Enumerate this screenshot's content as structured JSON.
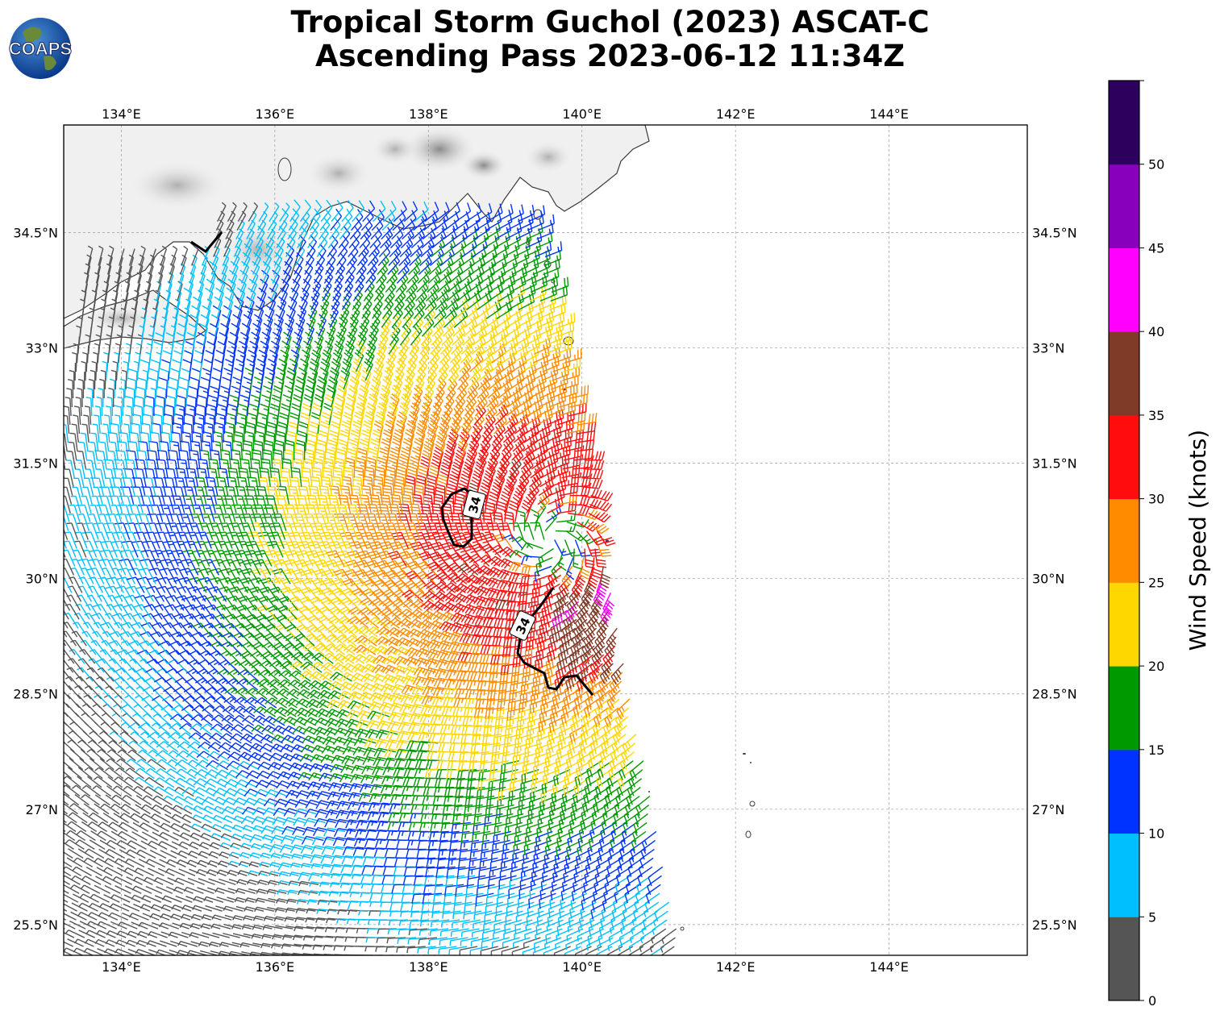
{
  "title": {
    "line1": "Tropical Storm Guchol (2023) ASCAT-C",
    "line2": "Ascending Pass 2023-06-12 11:34Z"
  },
  "logo": {
    "text": "COAPS",
    "icon": "globe-icon"
  },
  "map": {
    "lon_range": [
      133.25,
      145.8
    ],
    "lat_range": [
      25.1,
      35.9
    ],
    "lon_ticks": [
      "134°E",
      "136°E",
      "138°E",
      "140°E",
      "142°E",
      "144°E"
    ],
    "lon_tick_values": [
      134,
      136,
      138,
      140,
      142,
      144
    ],
    "lat_ticks": [
      "34.5°N",
      "33°N",
      "31.5°N",
      "30°N",
      "28.5°N",
      "27°N",
      "25.5°N"
    ],
    "lat_tick_values": [
      34.5,
      33,
      31.5,
      30,
      28.5,
      27,
      25.5
    ],
    "grid": true,
    "contour_label": "34",
    "storm_center": {
      "lon": 139.6,
      "lat": 30.5
    }
  },
  "colorbar": {
    "title": "Wind Speed (knots)",
    "ticks": [
      "0",
      "5",
      "10",
      "15",
      "20",
      "25",
      "30",
      "35",
      "40",
      "45",
      "50"
    ],
    "colors": [
      "#555555",
      "#00bfff",
      "#0033ff",
      "#009900",
      "#ffd700",
      "#ff8c00",
      "#ff0d0d",
      "#7f3a28",
      "#ff00ff",
      "#8800bb",
      "#2e005e"
    ],
    "bins": [
      0,
      5,
      10,
      15,
      20,
      25,
      30,
      35,
      40,
      45,
      50,
      55
    ]
  }
}
